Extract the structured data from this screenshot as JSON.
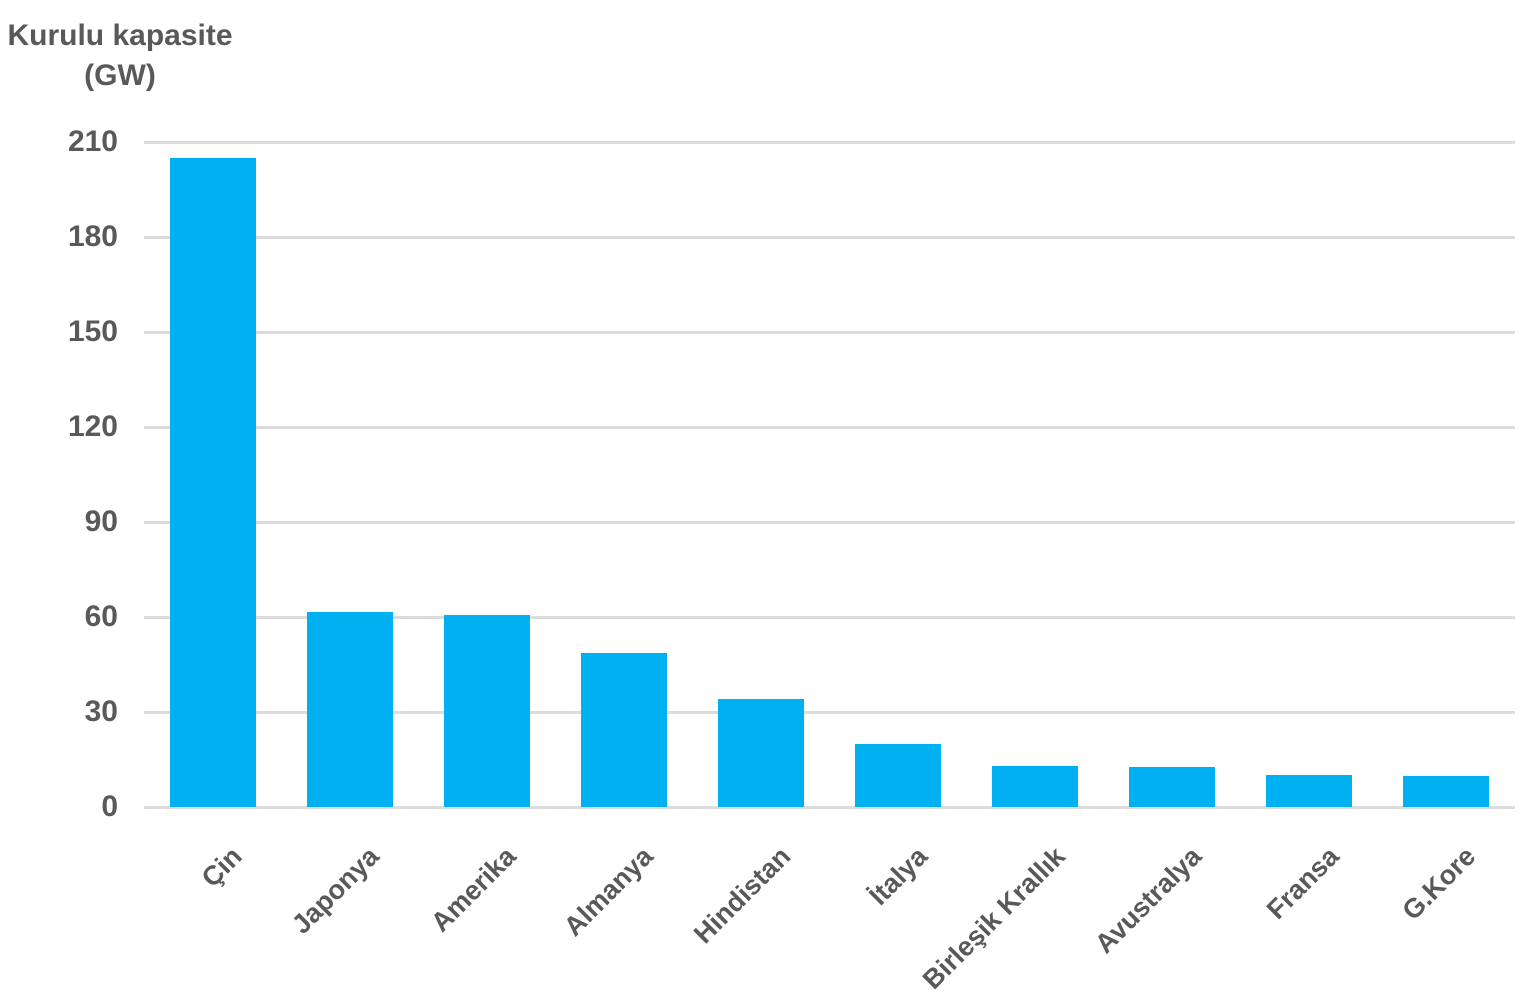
{
  "chart_data": {
    "type": "bar",
    "title_line1": "Kurulu kapasite",
    "title_line2": "(GW)",
    "ylabel": "Kurulu kapasite (GW)",
    "unit": "GW",
    "categories": [
      "Çin",
      "Japonya",
      "Amerika",
      "Almanya",
      "Hindistan",
      "İtalya",
      "Birleşik Krallık",
      "Avustralya",
      "Fransa",
      "G.Kore"
    ],
    "values": [
      205,
      61.5,
      60.5,
      48.5,
      34,
      20,
      12.8,
      12.5,
      10,
      9.7
    ],
    "ylim": [
      0,
      210
    ],
    "yticks": [
      0,
      30,
      60,
      90,
      120,
      150,
      180,
      210
    ],
    "grid": "horizontal",
    "legend": "none",
    "bar_color": "#00B0F0",
    "text_color": "#595959",
    "gridline_color": "#DCDCDC",
    "background_color": "#FFFFFF"
  }
}
